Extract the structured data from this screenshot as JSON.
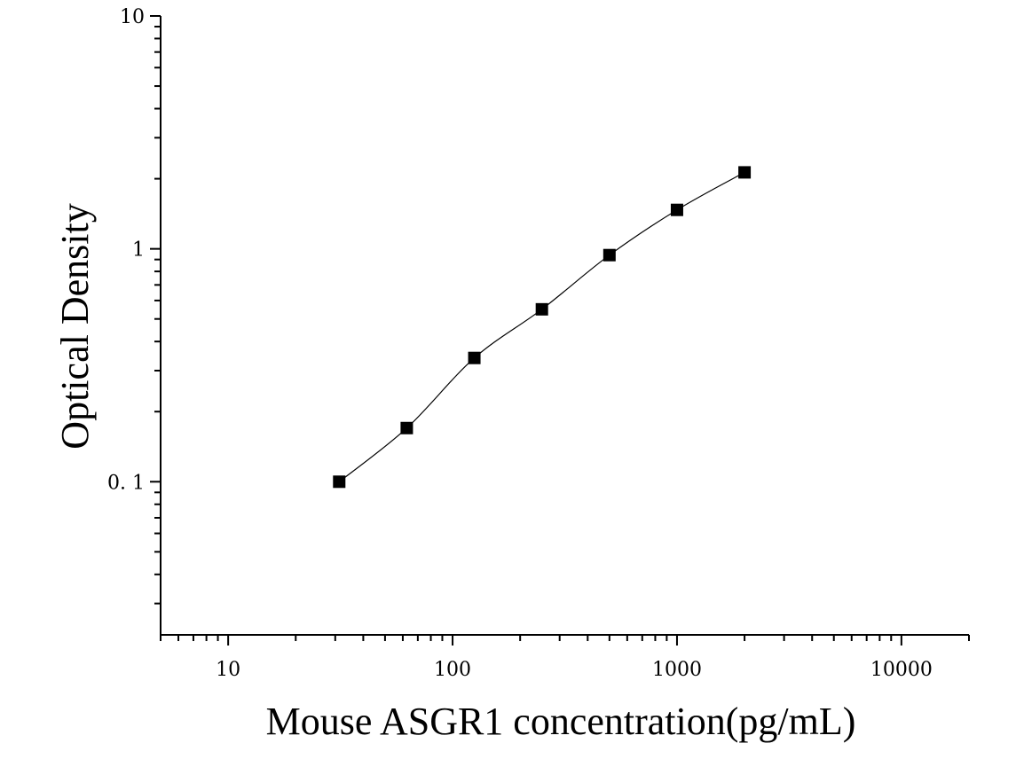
{
  "chart_data": {
    "type": "scatter",
    "xlabel": "Mouse ASGR1 concentration(pg/mL)",
    "ylabel": "Optical Density",
    "x_scale": "log",
    "y_scale": "log",
    "xlim": [
      5,
      20000
    ],
    "ylim": [
      0.022,
      10
    ],
    "grid": false,
    "x_ticks": [
      {
        "value": 10,
        "label": "10"
      },
      {
        "value": 100,
        "label": "100"
      },
      {
        "value": 1000,
        "label": "1000"
      },
      {
        "value": 10000,
        "label": "10000"
      }
    ],
    "y_ticks": [
      {
        "value": 0.1,
        "label": "0. 1"
      },
      {
        "value": 1,
        "label": "1"
      },
      {
        "value": 10,
        "label": "10"
      }
    ],
    "series": [
      {
        "x": [
          31.25,
          62.5,
          125,
          250,
          500,
          1000,
          2000
        ],
        "y": [
          0.1,
          0.17,
          0.34,
          0.55,
          0.94,
          1.47,
          2.13
        ],
        "marker": "square",
        "color": "#000000",
        "fit_line": true
      }
    ]
  }
}
